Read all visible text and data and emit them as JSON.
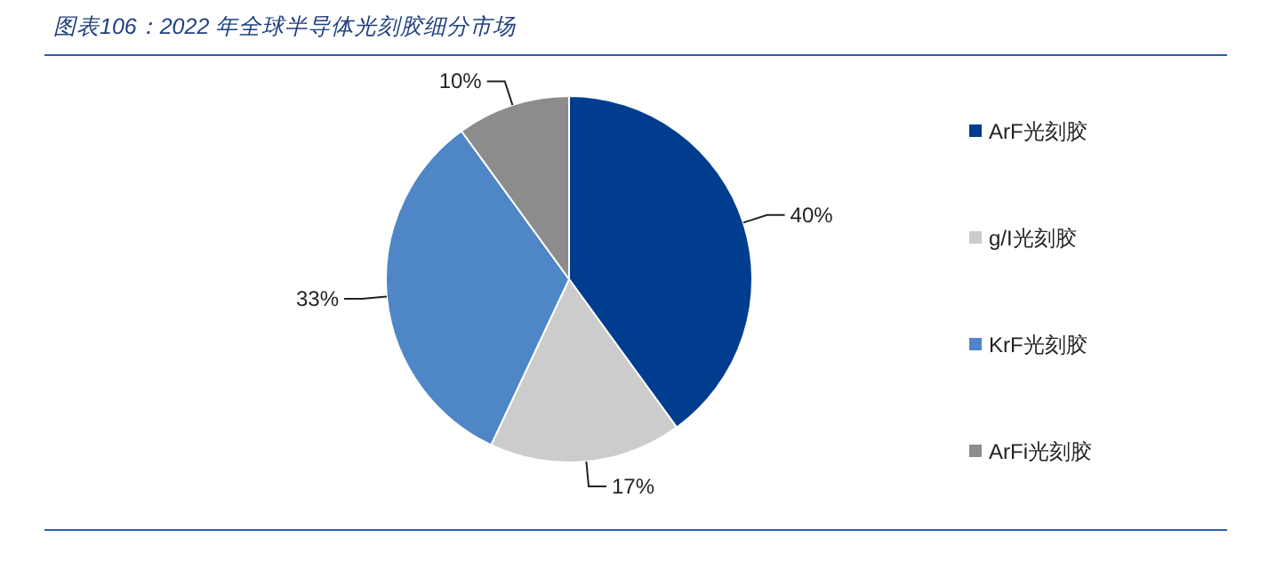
{
  "chart_data": {
    "type": "pie",
    "title": "图表106：2022 年全球半导体光刻胶细分市场",
    "categories": [
      "ArF光刻胶",
      "g/I光刻胶",
      "KrF光刻胶",
      "ArFi光刻胶"
    ],
    "values": [
      40,
      17,
      33,
      10
    ],
    "value_labels": [
      "40%",
      "17%",
      "33%",
      "10%"
    ],
    "colors": [
      "#003d8f",
      "#cccccc",
      "#4f86c6",
      "#8c8c8c"
    ],
    "legend": "right"
  }
}
